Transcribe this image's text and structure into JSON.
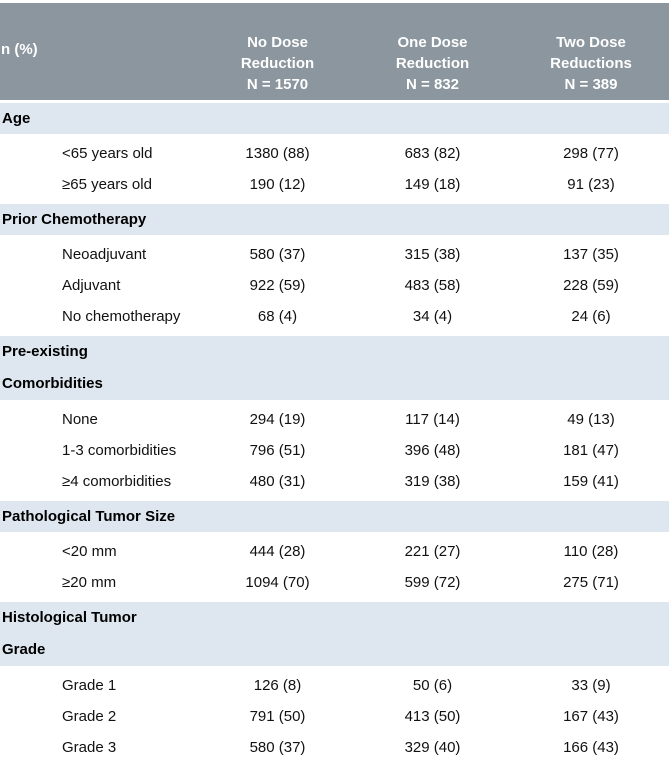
{
  "colors": {
    "header_bg": "#8b969e",
    "band_bg": "#dee7f0",
    "header_text": "#ffffff",
    "body_text": "#111111"
  },
  "table": {
    "corner_label": "n (%)",
    "columns": [
      {
        "lines": [
          "No Dose",
          "Reduction",
          "N = 1570"
        ]
      },
      {
        "lines": [
          "One Dose",
          "Reduction",
          "N = 832"
        ]
      },
      {
        "lines": [
          "Two Dose",
          "Reductions",
          "N = 389"
        ]
      }
    ],
    "sections": [
      {
        "header_lines": [
          "Age"
        ],
        "rows": [
          {
            "label": "<65 years old",
            "values": [
              "1380 (88)",
              "683 (82)",
              "298 (77)"
            ]
          },
          {
            "label": "≥65 years old",
            "values": [
              "190 (12)",
              "149 (18)",
              "91 (23)"
            ]
          }
        ]
      },
      {
        "header_lines": [
          "Prior Chemotherapy"
        ],
        "rows": [
          {
            "label": "Neoadjuvant",
            "values": [
              "580 (37)",
              "315 (38)",
              "137 (35)"
            ]
          },
          {
            "label": "Adjuvant",
            "values": [
              "922 (59)",
              "483 (58)",
              "228 (59)"
            ]
          },
          {
            "label": "No chemotherapy",
            "values": [
              "68 (4)",
              "34 (4)",
              "24 (6)"
            ]
          }
        ]
      },
      {
        "header_lines": [
          "Pre-existing",
          "Comorbidities"
        ],
        "rows": [
          {
            "label": "None",
            "values": [
              "294 (19)",
              "117 (14)",
              "49 (13)"
            ]
          },
          {
            "label": "1-3 comorbidities",
            "values": [
              "796 (51)",
              "396 (48)",
              "181 (47)"
            ]
          },
          {
            "label": "≥4 comorbidities",
            "values": [
              "480 (31)",
              "319 (38)",
              "159 (41)"
            ]
          }
        ]
      },
      {
        "header_lines": [
          "Pathological Tumor Size"
        ],
        "rows": [
          {
            "label": "<20 mm",
            "values": [
              "444 (28)",
              "221 (27)",
              "110 (28)"
            ]
          },
          {
            "label": "≥20 mm",
            "values": [
              "1094 (70)",
              "599 (72)",
              "275 (71)"
            ]
          }
        ]
      },
      {
        "header_lines": [
          "Histological Tumor",
          "Grade"
        ],
        "rows": [
          {
            "label": "Grade 1",
            "values": [
              "126 (8)",
              "50 (6)",
              "33 (9)"
            ]
          },
          {
            "label": "Grade 2",
            "values": [
              "791 (50)",
              "413 (50)",
              "167 (43)"
            ]
          },
          {
            "label": "Grade 3",
            "values": [
              "580 (37)",
              "329 (40)",
              "166 (43)"
            ]
          }
        ]
      }
    ]
  }
}
